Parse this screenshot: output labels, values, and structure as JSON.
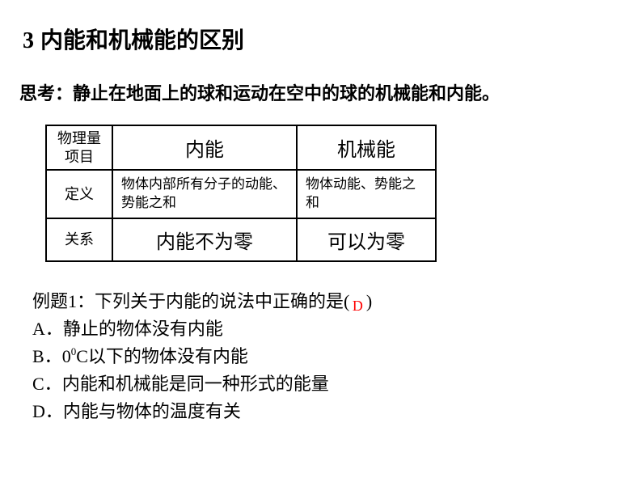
{
  "heading": {
    "number": "3",
    "title": "内能和机械能的区别"
  },
  "thought": "思考：静止在地面上的球和运动在空中的球的机械能和内能。",
  "table": {
    "header_label_line1": "物理量",
    "header_label_line2": "项目",
    "col_a_header": "内能",
    "col_b_header": "机械能",
    "row1_label": "定义",
    "row1_a": "物体内部所有分子的动能、势能之和",
    "row1_b": "物体动能、势能之和",
    "row2_label": "关系",
    "row2_a": "内能不为零",
    "row2_b": "可以为零",
    "border_color": "#000000"
  },
  "question": {
    "prompt_before": "例题1：下列关于内能的说法中正确的是(",
    "answer": "D",
    "prompt_after": ")",
    "answer_color": "#ff0000",
    "options": {
      "A": "静止的物体没有内能",
      "B_pre": "0",
      "B_sup": "0",
      "B_post": "C以下的物体没有内能",
      "C": "内能和机械能是同一种形式的能量",
      "D": "内能与物体的温度有关"
    }
  }
}
